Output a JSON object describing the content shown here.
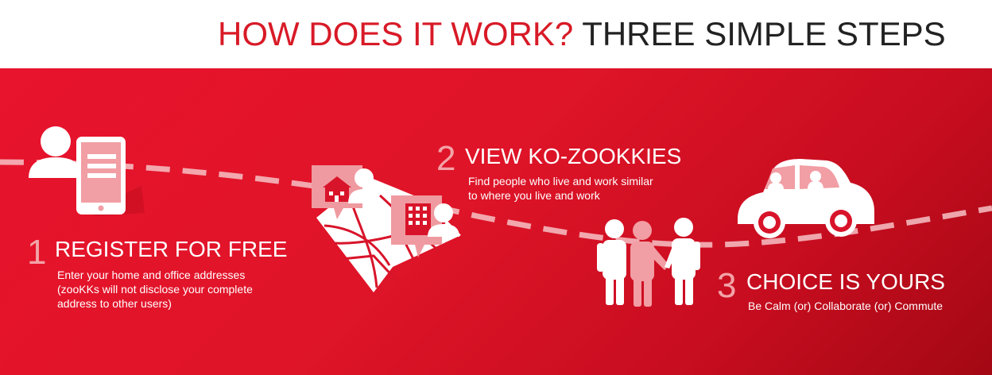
{
  "header": {
    "title_highlight": "HOW DOES IT WORK?",
    "title_rest": "THREE SIMPLE STEPS"
  },
  "steps": [
    {
      "number": "1",
      "title": "REGISTER FOR FREE",
      "description_lines": [
        "Enter your home and office addresses",
        "(zooKKs will not disclose your complete",
        "address to other users)"
      ]
    },
    {
      "number": "2",
      "title": "VIEW KO-ZOOKKIES",
      "description_lines": [
        "Find people who live and work similar",
        "to where you live and work"
      ]
    },
    {
      "number": "3",
      "title": "CHOICE IS YOURS",
      "description_lines": [
        "Be Calm (or) Collaborate (or) Commute"
      ]
    }
  ],
  "colors": {
    "brand_red": "#d81a27",
    "panel_red": "#e3142b",
    "light_pink": "#f2a3a8"
  },
  "icons": [
    "user-phone-icon",
    "map-pins-icon",
    "people-group-icon",
    "car-icon"
  ]
}
